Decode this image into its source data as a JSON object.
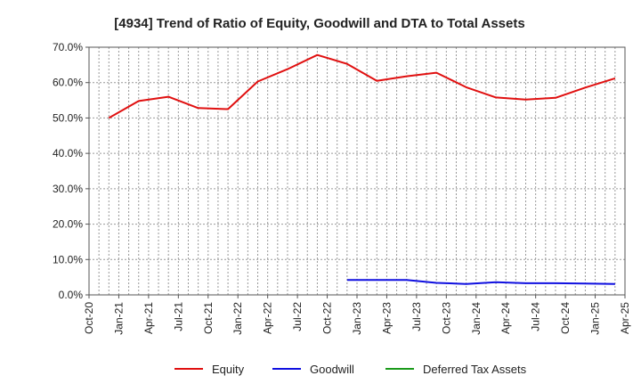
{
  "chart_data": {
    "type": "line",
    "title": "[4934]  Trend of Ratio of Equity, Goodwill and DTA to Total Assets",
    "xlabel": "",
    "ylabel": "",
    "x_ticks": [
      "Oct-20",
      "Jan-21",
      "Apr-21",
      "Jul-21",
      "Oct-21",
      "Jan-22",
      "Apr-22",
      "Jul-22",
      "Oct-22",
      "Jan-23",
      "Apr-23",
      "Jul-23",
      "Oct-23",
      "Jan-24",
      "Apr-24",
      "Jul-24",
      "Oct-24",
      "Jan-25",
      "Apr-25"
    ],
    "y_ticks": [
      "0.0%",
      "10.0%",
      "20.0%",
      "30.0%",
      "40.0%",
      "50.0%",
      "60.0%",
      "70.0%"
    ],
    "ylim": [
      0,
      70
    ],
    "grid": true,
    "legend_position": "bottom",
    "series": [
      {
        "name": "Equity",
        "color": "#e01010",
        "x": [
          "Dec-20",
          "Mar-21",
          "Jun-21",
          "Sep-21",
          "Dec-21",
          "Mar-22",
          "Jun-22",
          "Sep-22",
          "Dec-22",
          "Mar-23",
          "Jun-23",
          "Sep-23",
          "Dec-23",
          "Mar-24",
          "Jun-24",
          "Sep-24",
          "Dec-24",
          "Mar-25"
        ],
        "values": [
          50.0,
          54.8,
          56.0,
          52.8,
          52.5,
          60.3,
          63.8,
          67.8,
          65.3,
          60.5,
          61.8,
          62.8,
          58.7,
          55.8,
          55.2,
          55.7,
          58.6,
          61.2
        ]
      },
      {
        "name": "Goodwill",
        "color": "#1010e0",
        "x": [
          "Dec-22",
          "Mar-23",
          "Jun-23",
          "Sep-23",
          "Dec-23",
          "Mar-24",
          "Jun-24",
          "Sep-24",
          "Dec-24",
          "Mar-25"
        ],
        "values": [
          4.2,
          4.2,
          4.2,
          3.4,
          3.1,
          3.6,
          3.3,
          3.3,
          3.2,
          3.1
        ]
      },
      {
        "name": "Deferred Tax Assets",
        "color": "#1a9a1a",
        "x": [],
        "values": []
      }
    ]
  }
}
